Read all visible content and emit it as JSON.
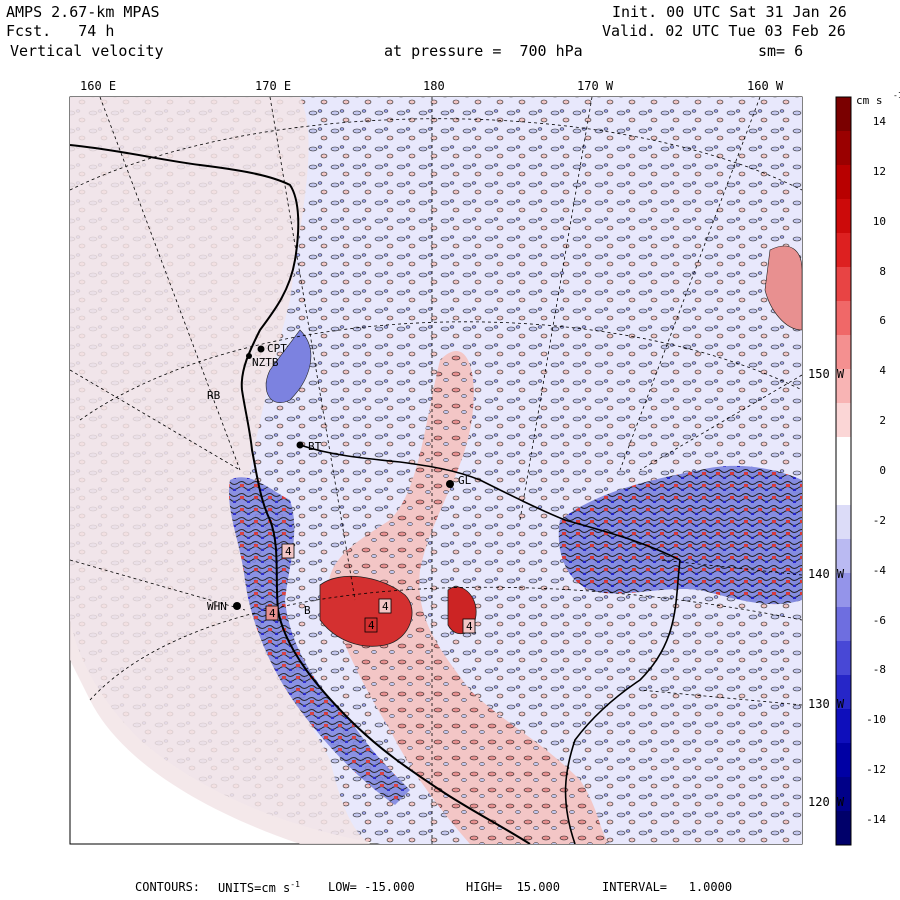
{
  "header": {
    "model": "AMPS 2.67-km MPAS",
    "forecast": "Fcst.   74 h",
    "field": "Vertical velocity",
    "pressure": "at pressure =  700 hPa",
    "init": "Init. 00 UTC Sat 31 Jan 26",
    "valid": "Valid. 02 UTC Tue 03 Feb 26",
    "smoothing": "sm= 6"
  },
  "top_ticks": [
    "160 E",
    "170 E",
    "180",
    "170 W",
    "160 W"
  ],
  "right_ticks": [
    "150 W",
    "140 W",
    "130 W",
    "120 W"
  ],
  "stations": [
    "CPT",
    "NZTB",
    "RB",
    "BT",
    "GL",
    "WHN",
    "B"
  ],
  "contour_labels": [
    "4",
    "4",
    "4",
    "4",
    "4"
  ],
  "colorbar": {
    "units": "cm s",
    "units_exp": "-1",
    "labels": [
      "14",
      "12",
      "10",
      "8",
      "6",
      "4",
      "2",
      "0",
      "-2",
      "-4",
      "-6",
      "-8",
      "-10",
      "-12",
      "-14"
    ],
    "colors": [
      "#7a0000",
      "#9a0000",
      "#b80000",
      "#cc0a0a",
      "#dd2020",
      "#e84444",
      "#f06868",
      "#f49090",
      "#f8b4b4",
      "#fbd6d6",
      "#ffffff",
      "#ffffff",
      "#dcdcf8",
      "#babaf2",
      "#9494ea",
      "#6e6ee0",
      "#4848d6",
      "#2626c8",
      "#0e0ebb",
      "#0000a4",
      "#000088",
      "#00006a"
    ]
  },
  "footer": {
    "contours": "CONTOURS:",
    "units_prefix": "UNITS=cm s",
    "units_exp": "-1",
    "low": "LOW= -15.000",
    "high": "HIGH=  15.000",
    "interval": "INTERVAL=   1.0000"
  },
  "colors": {
    "ocean_bg": "#e8e8fc",
    "sea_ice_light": "#f2e4e6",
    "up_light": "#f3c6c6",
    "up_mid": "#e89090",
    "up_strong": "#d43030",
    "down_light": "#c4c8f0",
    "down_mid": "#7c82e0",
    "down_strong": "#2a2ad0"
  }
}
